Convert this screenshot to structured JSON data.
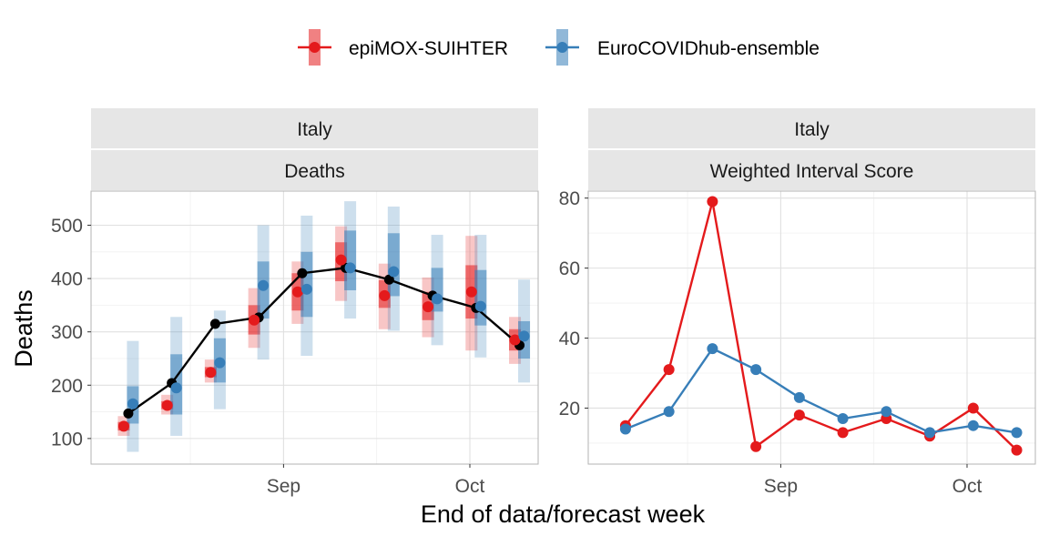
{
  "legend": {
    "position": "top",
    "entries": [
      {
        "name": "epiMOX-SUIHTER",
        "color": "#E41A1C"
      },
      {
        "name": "EuroCOVIDhub-ensemble",
        "color": "#377EB8"
      }
    ]
  },
  "colors": {
    "observed": "#000000",
    "strip": "#E6E6E6",
    "grid": "#E0E0E0"
  },
  "axes": {
    "xlabel": "End of data/forecast week"
  },
  "chart_data": [
    {
      "type": "line",
      "facet": [
        "Italy",
        "Deaths"
      ],
      "ylabel": "Deaths",
      "grid": true,
      "x": [
        "2021-08-07",
        "2021-08-14",
        "2021-08-21",
        "2021-08-28",
        "2021-09-04",
        "2021-09-11",
        "2021-09-18",
        "2021-09-25",
        "2021-10-02",
        "2021-10-09"
      ],
      "xticks": [
        {
          "date": "2021-09-01",
          "label": "Sep"
        },
        {
          "date": "2021-10-01",
          "label": "Oct"
        }
      ],
      "yticks": [
        100,
        200,
        300,
        400,
        500
      ],
      "xlim": [
        "2021-08-01",
        "2021-10-12"
      ],
      "ylim": [
        52,
        564
      ],
      "observed": [
        147,
        204,
        315,
        327,
        410,
        420,
        398,
        368,
        345,
        275
      ],
      "series": [
        {
          "name": "epiMOX-SUIHTER",
          "median": [
            123,
            162,
            224,
            322,
            375,
            435,
            368,
            347,
            375,
            285
          ],
          "q25": [
            115,
            155,
            215,
            295,
            340,
            395,
            345,
            322,
            325,
            265
          ],
          "q75": [
            131,
            170,
            234,
            350,
            410,
            468,
            397,
            375,
            425,
            305
          ],
          "q05": [
            105,
            145,
            205,
            270,
            315,
            358,
            305,
            290,
            265,
            240
          ],
          "q95": [
            142,
            182,
            248,
            382,
            432,
            498,
            428,
            402,
            480,
            328
          ]
        },
        {
          "name": "EuroCOVIDhub-ensemble",
          "median": [
            165,
            195,
            242,
            387,
            380,
            420,
            413,
            362,
            348,
            292
          ],
          "q25": [
            128,
            145,
            205,
            325,
            328,
            378,
            367,
            338,
            312,
            250
          ],
          "q75": [
            198,
            258,
            288,
            432,
            450,
            490,
            485,
            420,
            416,
            320
          ],
          "q05": [
            75,
            105,
            155,
            248,
            255,
            325,
            302,
            275,
            252,
            205
          ],
          "q95": [
            283,
            328,
            340,
            500,
            518,
            545,
            535,
            482,
            482,
            398
          ]
        }
      ]
    },
    {
      "type": "line",
      "facet": [
        "Italy",
        "Weighted Interval Score"
      ],
      "grid": true,
      "x": [
        "2021-08-07",
        "2021-08-14",
        "2021-08-21",
        "2021-08-28",
        "2021-09-04",
        "2021-09-11",
        "2021-09-18",
        "2021-09-25",
        "2021-10-02",
        "2021-10-09"
      ],
      "xticks": [
        {
          "date": "2021-09-01",
          "label": "Sep"
        },
        {
          "date": "2021-10-01",
          "label": "Oct"
        }
      ],
      "yticks": [
        20,
        40,
        60,
        80
      ],
      "xlim": [
        "2021-08-01",
        "2021-10-12"
      ],
      "ylim": [
        4,
        82
      ],
      "series": [
        {
          "name": "epiMOX-SUIHTER",
          "values": [
            15,
            31,
            79,
            9,
            18,
            13,
            17,
            12,
            20,
            8
          ]
        },
        {
          "name": "EuroCOVIDhub-ensemble",
          "values": [
            14,
            19,
            37,
            31,
            23,
            17,
            19,
            13,
            15,
            13
          ]
        }
      ]
    }
  ]
}
